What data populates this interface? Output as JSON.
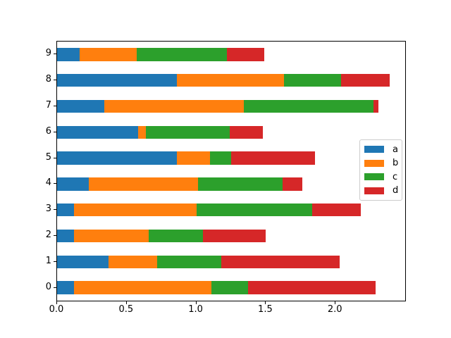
{
  "figure": {
    "background": "#ffffff"
  },
  "chart_data": {
    "type": "bar",
    "orientation": "horizontal",
    "stacked": true,
    "title": "",
    "xlabel": "",
    "ylabel": "",
    "grid": false,
    "categories": [
      "0",
      "1",
      "2",
      "3",
      "4",
      "5",
      "6",
      "7",
      "8",
      "9"
    ],
    "series": [
      {
        "name": "a",
        "color": "#1f77b4",
        "values": [
          0.12,
          0.37,
          0.12,
          0.12,
          0.23,
          0.86,
          0.58,
          0.34,
          0.86,
          0.16
        ]
      },
      {
        "name": "b",
        "color": "#ff7f0e",
        "values": [
          0.99,
          0.35,
          0.54,
          0.88,
          0.78,
          0.24,
          0.06,
          1.0,
          0.77,
          0.41
        ]
      },
      {
        "name": "c",
        "color": "#2ca02c",
        "values": [
          0.26,
          0.46,
          0.39,
          0.83,
          0.61,
          0.15,
          0.6,
          0.93,
          0.41,
          0.65
        ]
      },
      {
        "name": "d",
        "color": "#d62728",
        "values": [
          0.92,
          0.85,
          0.45,
          0.35,
          0.14,
          0.6,
          0.24,
          0.04,
          0.35,
          0.27
        ]
      }
    ],
    "xlim": [
      0,
      2.5
    ],
    "ylim": [
      -0.5,
      9.5
    ],
    "x_tick_labels": [
      "0.0",
      "0.5",
      "1.0",
      "1.5",
      "2.0"
    ],
    "x_tick_values": [
      0,
      0.5,
      1.0,
      1.5,
      2.0
    ],
    "y_tick_labels": [
      "9",
      "8",
      "7",
      "6",
      "5",
      "4",
      "3",
      "2",
      "1",
      "0"
    ],
    "bar_height": 0.5,
    "legend": {
      "position": "center right",
      "entries": [
        "a",
        "b",
        "c",
        "d"
      ]
    }
  }
}
